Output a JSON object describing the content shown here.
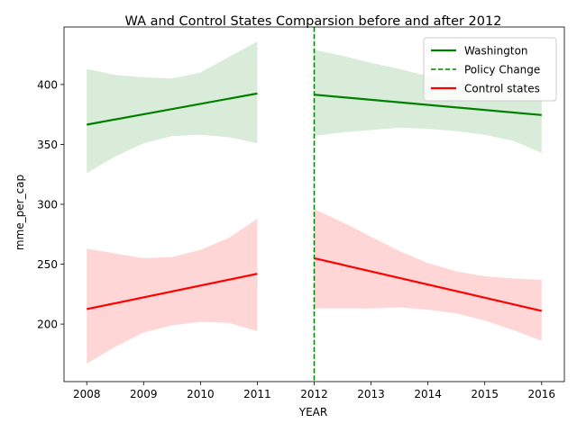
{
  "chart_data": {
    "type": "line",
    "title": "WA and Control States Comparsion before and after 2012",
    "xlabel": "YEAR",
    "ylabel": "mme_per_cap",
    "xlim": [
      2007.6,
      2016.4
    ],
    "ylim": [
      152,
      448
    ],
    "xticks": [
      2008,
      2009,
      2010,
      2011,
      2012,
      2013,
      2014,
      2015,
      2016
    ],
    "yticks": [
      200,
      250,
      300,
      350,
      400
    ],
    "grid": false,
    "legend_position": "upper right",
    "policy_change_year": 2012,
    "series": [
      {
        "name": "Washington",
        "color": "#008000",
        "band_color": "#008000",
        "segments": [
          {
            "x": [
              2008,
              2011
            ],
            "y": [
              366.5,
              392.5
            ],
            "ci_x": [
              2008,
              2008.5,
              2009,
              2009.5,
              2010,
              2010.5,
              2011
            ],
            "ci_lower": [
              326,
              340,
              351,
              357,
              358,
              356,
              351
            ],
            "ci_upper": [
              413,
              408,
              406,
              405,
              410,
              423,
              436
            ]
          },
          {
            "x": [
              2012,
              2016
            ],
            "y": [
              391.5,
              374.5
            ],
            "ci_x": [
              2012,
              2012.5,
              2013,
              2013.5,
              2014,
              2014.5,
              2015,
              2015.5,
              2016
            ],
            "ci_lower": [
              357,
              360,
              362,
              364,
              363,
              361,
              358,
              353,
              343
            ],
            "ci_upper": [
              429,
              424,
              418,
              413,
              407,
              402,
              398,
              396,
              393
            ]
          }
        ]
      },
      {
        "name": "Control states",
        "color": "#ff0000",
        "band_color": "#ff0000",
        "segments": [
          {
            "x": [
              2008,
              2011
            ],
            "y": [
              212.5,
              242
            ],
            "ci_x": [
              2008,
              2008.5,
              2009,
              2009.5,
              2010,
              2010.5,
              2011
            ],
            "ci_lower": [
              167,
              181,
              193,
              199,
              202,
              201,
              194
            ],
            "ci_upper": [
              263,
              259,
              255,
              256,
              262,
              272,
              288
            ]
          },
          {
            "x": [
              2012,
              2016
            ],
            "y": [
              255,
              211
            ],
            "ci_x": [
              2012,
              2012.5,
              2013,
              2013.5,
              2014,
              2014.5,
              2015,
              2015.5,
              2016
            ],
            "ci_lower": [
              213,
              213,
              213,
              214,
              212,
              209,
              203,
              195,
              186
            ],
            "ci_upper": [
              296,
              285,
              273,
              261,
              251,
              244,
              240,
              238,
              237
            ]
          }
        ]
      }
    ],
    "legend": [
      {
        "label": "Washington",
        "color": "#008000",
        "style": "solid"
      },
      {
        "label": "Policy Change",
        "color": "#008000",
        "style": "dashed"
      },
      {
        "label": "Control states",
        "color": "#ff0000",
        "style": "solid"
      }
    ]
  }
}
